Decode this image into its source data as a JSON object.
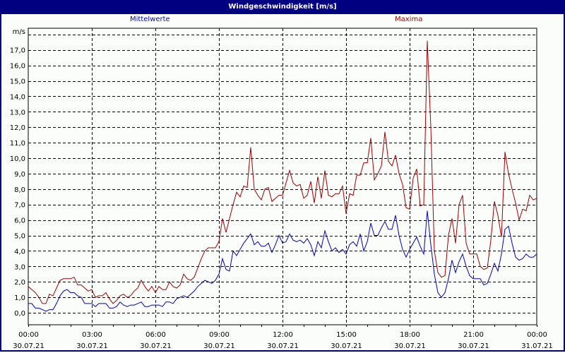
{
  "window": {
    "title": "Windgeschwindigkeit [m/s]"
  },
  "legend": {
    "mean": "Mittelwerte",
    "max": "Maxima",
    "mean_color": "#0000c0",
    "max_color": "#a00000"
  },
  "axis": {
    "y_unit": "m/s",
    "y_ticks": [
      "0,0",
      "1,0",
      "2,0",
      "3,0",
      "4,0",
      "5,0",
      "6,0",
      "7,0",
      "8,0",
      "9,0",
      "10,0",
      "11,0",
      "12,0",
      "13,0",
      "14,0",
      "15,0",
      "16,0",
      "17,0"
    ],
    "x_ticks": [
      {
        "time": "00:00",
        "date": "30.07.21"
      },
      {
        "time": "03:00",
        "date": "30.07.21"
      },
      {
        "time": "06:00",
        "date": "30.07.21"
      },
      {
        "time": "09:00",
        "date": "30.07.21"
      },
      {
        "time": "12:00",
        "date": "30.07.21"
      },
      {
        "time": "15:00",
        "date": "30.07.21"
      },
      {
        "time": "18:00",
        "date": "30.07.21"
      },
      {
        "time": "21:00",
        "date": "30.07.21"
      },
      {
        "time": "00:00",
        "date": "31.07.21"
      }
    ]
  },
  "chart_data": {
    "type": "line",
    "title": "Windgeschwindigkeit [m/s]",
    "xlabel": "",
    "ylabel": "m/s",
    "ylim": [
      -0.8,
      18.4
    ],
    "grid": true,
    "x_interval_minutes": 10,
    "x_start": "30.07.21 00:00",
    "x_end": "31.07.21 00:00",
    "categories": [
      "00:00",
      "03:00",
      "06:00",
      "09:00",
      "12:00",
      "15:00",
      "18:00",
      "21:00",
      "00:00"
    ],
    "series": [
      {
        "name": "Mittelwerte",
        "color": "#0000c0",
        "values": [
          0.6,
          0.6,
          0.3,
          0.3,
          0.2,
          0.1,
          0.2,
          0.2,
          0.6,
          1.1,
          1.4,
          1.5,
          1.3,
          1.3,
          1.1,
          1.0,
          0.6,
          0.6,
          0.6,
          0.4,
          0.6,
          0.6,
          0.6,
          0.3,
          0.3,
          0.4,
          0.7,
          0.5,
          0.4,
          0.5,
          0.5,
          0.6,
          0.7,
          0.4,
          0.4,
          0.5,
          0.5,
          0.5,
          0.4,
          0.7,
          0.7,
          0.6,
          0.9,
          1.0,
          1.1,
          1.0,
          1.2,
          1.4,
          1.7,
          1.9,
          2.1,
          2.0,
          1.9,
          2.1,
          2.5,
          3.5,
          2.8,
          2.7,
          4.0,
          3.7,
          4.1,
          4.5,
          4.8,
          5.1,
          4.4,
          4.6,
          4.3,
          4.3,
          4.5,
          3.9,
          4.4,
          5.0,
          4.5,
          4.6,
          5.1,
          4.7,
          4.6,
          4.7,
          4.5,
          4.8,
          4.4,
          3.7,
          4.6,
          4.2,
          5.3,
          4.6,
          4.0,
          4.2,
          3.9,
          4.1,
          3.8,
          4.4,
          4.6,
          4.3,
          5.1,
          4.0,
          4.6,
          5.8,
          5.0,
          5.0,
          5.5,
          5.9,
          5.4,
          5.4,
          6.3,
          5.0,
          4.1,
          3.6,
          4.1,
          4.5,
          4.9,
          4.3,
          3.8,
          6.6,
          4.4,
          2.5,
          1.3,
          1.0,
          1.3,
          2.2,
          3.4,
          2.6,
          3.3,
          3.8,
          3.0,
          2.4,
          2.2,
          2.2,
          2.2,
          1.8,
          1.9,
          2.5,
          3.2,
          2.7,
          3.8,
          5.4,
          5.6,
          4.5,
          3.6,
          3.4,
          3.5,
          3.8,
          3.6,
          3.6,
          3.8
        ]
      },
      {
        "name": "Maxima",
        "color": "#a00000",
        "values": [
          1.7,
          1.5,
          1.3,
          1.0,
          0.6,
          0.6,
          1.2,
          1.1,
          1.6,
          2.1,
          2.2,
          2.2,
          2.2,
          2.3,
          1.8,
          1.8,
          1.6,
          1.4,
          1.5,
          1.0,
          1.1,
          1.1,
          1.3,
          0.9,
          0.6,
          0.8,
          1.1,
          1.2,
          1.0,
          1.1,
          1.4,
          1.6,
          2.1,
          1.7,
          1.4,
          1.7,
          1.3,
          1.7,
          1.5,
          1.5,
          2.0,
          1.7,
          1.6,
          1.8,
          2.5,
          2.2,
          2.1,
          2.3,
          2.9,
          3.5,
          4.0,
          4.2,
          4.2,
          4.2,
          4.6,
          6.1,
          5.2,
          6.1,
          7.0,
          7.8,
          7.5,
          8.2,
          8.1,
          10.7,
          8.0,
          7.6,
          7.3,
          8.0,
          8.1,
          7.2,
          7.4,
          7.6,
          7.6,
          8.4,
          9.2,
          8.4,
          8.2,
          8.3,
          7.4,
          7.6,
          8.5,
          7.1,
          8.8,
          7.4,
          9.2,
          7.6,
          7.5,
          7.7,
          7.7,
          8.2,
          6.4,
          7.7,
          7.6,
          8.9,
          8.9,
          9.7,
          9.7,
          11.3,
          8.6,
          9.0,
          9.5,
          11.7,
          9.8,
          9.5,
          10.2,
          9.0,
          8.3,
          6.8,
          6.7,
          8.7,
          9.3,
          6.9,
          7.0,
          17.6,
          12.0,
          4.0,
          2.6,
          2.3,
          2.4,
          5.0,
          6.1,
          4.5,
          7.0,
          7.6,
          4.5,
          3.8,
          3.8,
          3.8,
          3.0,
          2.8,
          2.9,
          4.7,
          7.2,
          6.3,
          4.9,
          10.4,
          9.0,
          8.0,
          7.1,
          6.0,
          6.7,
          6.6,
          7.6,
          7.3,
          7.4
        ]
      }
    ]
  }
}
